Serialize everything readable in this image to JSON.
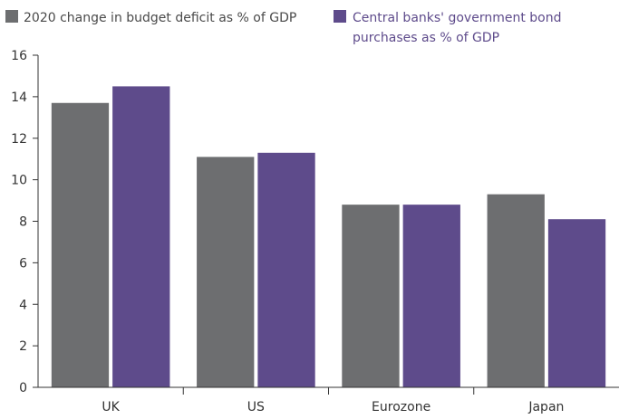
{
  "chart_data": {
    "type": "bar",
    "categories": [
      "UK",
      "US",
      "Eurozone",
      "Japan"
    ],
    "series": [
      {
        "name": "2020 change in budget deficit as % of GDP",
        "values": [
          13.7,
          11.1,
          8.8,
          9.3
        ],
        "color": "#6d6e70"
      },
      {
        "name": "Central banks' government bond purchases as % of GDP",
        "name_lines": [
          "Central banks' government bond",
          "purchases as % of GDP"
        ],
        "values": [
          14.5,
          11.3,
          8.8,
          8.1
        ],
        "color": "#5e4b8b"
      }
    ],
    "y_ticks": [
      "0",
      "2",
      "4",
      "6",
      "8",
      "10",
      "12",
      "14",
      "16"
    ],
    "ylim": [
      0,
      16
    ],
    "grid": false,
    "legend_position": "top"
  }
}
